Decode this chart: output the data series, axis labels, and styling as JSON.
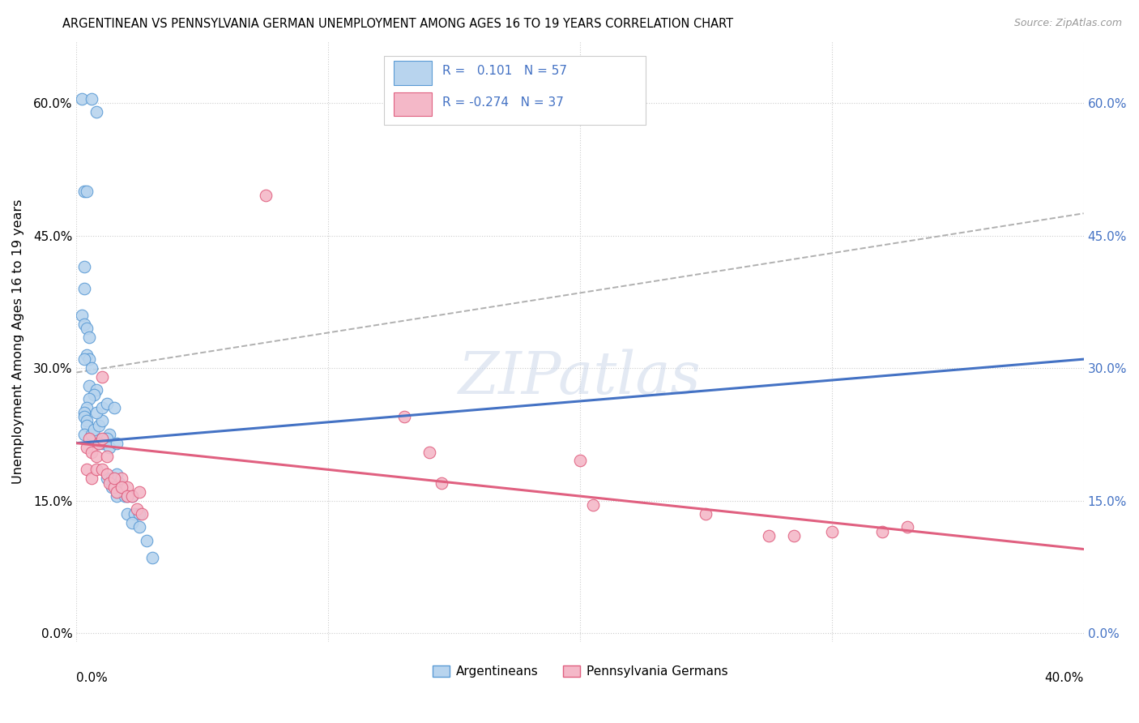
{
  "title": "ARGENTINEAN VS PENNSYLVANIA GERMAN UNEMPLOYMENT AMONG AGES 16 TO 19 YEARS CORRELATION CHART",
  "source": "Source: ZipAtlas.com",
  "ylabel": "Unemployment Among Ages 16 to 19 years",
  "yticks_labels": [
    "0.0%",
    "15.0%",
    "30.0%",
    "45.0%",
    "60.0%"
  ],
  "ytick_vals": [
    0.0,
    0.15,
    0.3,
    0.45,
    0.6
  ],
  "xtick_vals": [
    0.0,
    0.1,
    0.2,
    0.3,
    0.4
  ],
  "xlim": [
    0.0,
    0.4
  ],
  "ylim": [
    -0.01,
    0.67
  ],
  "series": [
    {
      "name": "Argentineans",
      "color": "#b8d4ee",
      "edge_color": "#5b9bd5",
      "R": 0.101,
      "N": 57,
      "trend_color": "#4472c4",
      "trend_x": [
        0.0,
        0.4
      ],
      "trend_y": [
        0.215,
        0.31
      ]
    },
    {
      "name": "Pennsylvania Germans",
      "color": "#f4b8c8",
      "edge_color": "#e06080",
      "R": -0.274,
      "N": 37,
      "trend_color": "#e06080",
      "trend_x": [
        0.0,
        0.4
      ],
      "trend_y": [
        0.215,
        0.095
      ]
    }
  ],
  "diag_line_x": [
    0.0,
    0.4
  ],
  "diag_line_y": [
    0.295,
    0.475
  ],
  "diag_line_color": "#b0b0b0",
  "watermark": "ZIPatlas",
  "arg_x": [
    0.002,
    0.006,
    0.008,
    0.003,
    0.004,
    0.003,
    0.003,
    0.002,
    0.003,
    0.004,
    0.005,
    0.004,
    0.005,
    0.003,
    0.006,
    0.005,
    0.008,
    0.007,
    0.005,
    0.004,
    0.003,
    0.003,
    0.004,
    0.004,
    0.003,
    0.006,
    0.007,
    0.009,
    0.01,
    0.008,
    0.01,
    0.012,
    0.009,
    0.011,
    0.013,
    0.01,
    0.012,
    0.015,
    0.013,
    0.016,
    0.012,
    0.014,
    0.016,
    0.014,
    0.017,
    0.018,
    0.016,
    0.019,
    0.02,
    0.022,
    0.02,
    0.023,
    0.025,
    0.022,
    0.025,
    0.028,
    0.03
  ],
  "arg_y": [
    0.605,
    0.605,
    0.59,
    0.5,
    0.5,
    0.415,
    0.39,
    0.36,
    0.35,
    0.345,
    0.335,
    0.315,
    0.31,
    0.31,
    0.3,
    0.28,
    0.275,
    0.27,
    0.265,
    0.255,
    0.25,
    0.245,
    0.24,
    0.235,
    0.225,
    0.225,
    0.23,
    0.235,
    0.24,
    0.25,
    0.255,
    0.26,
    0.215,
    0.22,
    0.225,
    0.215,
    0.22,
    0.255,
    0.21,
    0.215,
    0.175,
    0.175,
    0.18,
    0.165,
    0.17,
    0.165,
    0.155,
    0.155,
    0.155,
    0.155,
    0.135,
    0.135,
    0.135,
    0.125,
    0.12,
    0.105,
    0.085
  ],
  "pa_x": [
    0.004,
    0.005,
    0.006,
    0.008,
    0.009,
    0.01,
    0.012,
    0.004,
    0.006,
    0.008,
    0.01,
    0.012,
    0.013,
    0.015,
    0.016,
    0.018,
    0.02,
    0.01,
    0.015,
    0.018,
    0.02,
    0.022,
    0.025,
    0.024,
    0.026,
    0.075,
    0.13,
    0.14,
    0.145,
    0.2,
    0.205,
    0.25,
    0.275,
    0.285,
    0.3,
    0.32,
    0.33
  ],
  "pa_y": [
    0.21,
    0.22,
    0.205,
    0.2,
    0.215,
    0.22,
    0.2,
    0.185,
    0.175,
    0.185,
    0.185,
    0.18,
    0.17,
    0.165,
    0.16,
    0.175,
    0.165,
    0.29,
    0.175,
    0.165,
    0.155,
    0.155,
    0.16,
    0.14,
    0.135,
    0.495,
    0.245,
    0.205,
    0.17,
    0.195,
    0.145,
    0.135,
    0.11,
    0.11,
    0.115,
    0.115,
    0.12
  ]
}
